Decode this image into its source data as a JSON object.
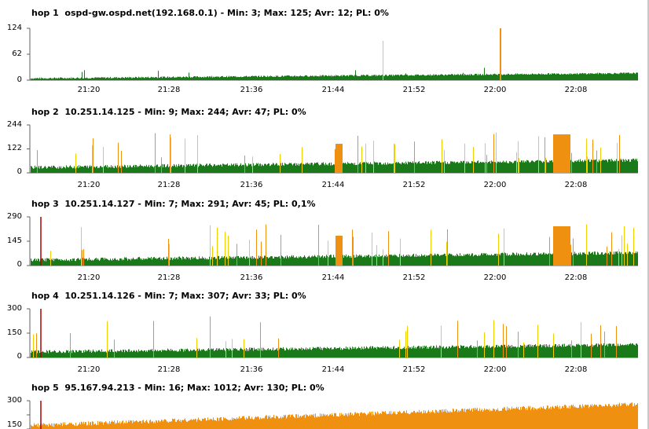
{
  "hops": [
    {
      "title": "hop 1  ospd-gw.ospd.net(192.168.0.1) - Min: 3; Max: 125; Avr: 12; PL: 0%",
      "y_ticks": [
        "124",
        "62",
        "0"
      ],
      "ymax": 124
    },
    {
      "title": "hop 2  10.251.14.125 - Min: 9; Max: 244; Avr: 47; PL: 0%",
      "y_ticks": [
        "244",
        "122",
        "0"
      ],
      "ymax": 244
    },
    {
      "title": "hop 3  10.251.14.127 - Min: 7; Max: 291; Avr: 45; PL: 0,1%",
      "y_ticks": [
        "290",
        "145",
        "0"
      ],
      "ymax": 290
    },
    {
      "title": "hop 4  10.251.14.126 - Min: 7; Max: 307; Avr: 33; PL: 0%",
      "y_ticks": [
        "300",
        "150",
        "0"
      ],
      "ymax": 300
    },
    {
      "title": "hop 5  95.167.94.213 - Min: 16; Max: 1012; Avr: 130; PL: 0%",
      "y_ticks": [
        "300",
        "150"
      ],
      "ymax": 300
    }
  ],
  "x_ticks": [
    "21:20",
    "21:28",
    "21:36",
    "21:44",
    "21:52",
    "22:00",
    "22:08"
  ],
  "colors": {
    "low": "#1a7a1a",
    "mid": "#f0d000",
    "high": "#f09010",
    "loss": "#b00000",
    "axis": "#606060",
    "grid": "#c0c0c0"
  }
}
